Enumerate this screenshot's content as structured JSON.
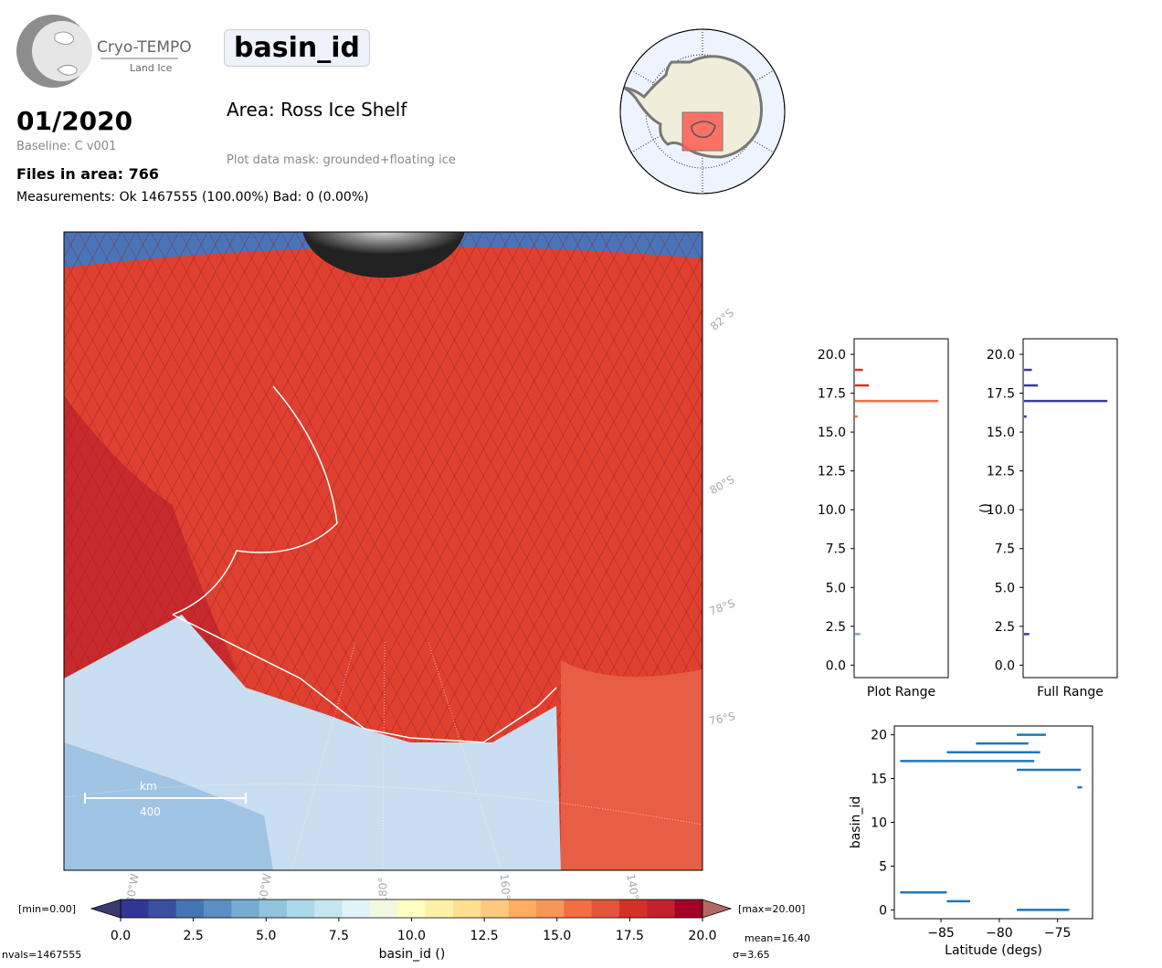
{
  "header": {
    "logo_name": "Cryo-TEMPO",
    "logo_sub": "Land Ice",
    "variable": "basin_id",
    "month": "01/2020",
    "baseline": "Baseline: C v001",
    "files": "Files in area: 766",
    "measurements": "Measurements: Ok 1467555 (100.00%) Bad: 0 (0.00%)",
    "area": "Area: Ross Ice Shelf",
    "mask": "Plot data mask: grounded+floating ice"
  },
  "map": {
    "lat_labels": [
      "82°S",
      "80°S",
      "78°S",
      "76°S"
    ],
    "lon_labels": [
      "180°W",
      "160°W",
      "180°",
      "160°E",
      "140°E"
    ],
    "scale_unit": "km",
    "scale_value": "400"
  },
  "colorbar": {
    "min_label": "[min=0.00]",
    "max_label": "[max=20.00]",
    "ticks": [
      "0.0",
      "2.5",
      "5.0",
      "7.5",
      "10.0",
      "12.5",
      "15.0",
      "17.5",
      "20.0"
    ],
    "label": "basin_id ()",
    "colors": [
      "#313695",
      "#3a4fa0",
      "#4575b4",
      "#5b8fc3",
      "#74add1",
      "#91c3dc",
      "#abd9e9",
      "#c6e6ef",
      "#e0f3f8",
      "#f0f8df",
      "#ffffbf",
      "#fff0a8",
      "#fee090",
      "#fdc980",
      "#fdae61",
      "#f89558",
      "#f46d43",
      "#e45539",
      "#d73027",
      "#c41f2c",
      "#a50026"
    ],
    "nvals": "nvals=1467555",
    "mean": "mean=16.40",
    "sigma": "σ=3.65"
  },
  "chart_data": [
    {
      "type": "bar",
      "orientation": "horizontal",
      "xlabel": "Plot Range",
      "ylabel": "",
      "ylim": [
        -0.8,
        21
      ],
      "yticks": [
        0.0,
        2.5,
        5.0,
        7.5,
        10.0,
        12.5,
        15.0,
        17.5,
        20.0
      ],
      "bars": [
        {
          "y": 2.0,
          "length": 0.06,
          "color": "#74add1"
        },
        {
          "y": 16.0,
          "length": 0.03,
          "color": "#f46d43"
        },
        {
          "y": 17.0,
          "length": 0.96,
          "color": "#f46d43"
        },
        {
          "y": 18.0,
          "length": 0.16,
          "color": "#d73027"
        },
        {
          "y": 19.0,
          "length": 0.09,
          "color": "#d73027"
        }
      ]
    },
    {
      "type": "bar",
      "orientation": "horizontal",
      "xlabel": "Full Range",
      "ylabel": "()",
      "ylim": [
        -0.8,
        21
      ],
      "yticks": [
        0.0,
        2.5,
        5.0,
        7.5,
        10.0,
        12.5,
        15.0,
        17.5,
        20.0
      ],
      "bars": [
        {
          "y": 2.0,
          "length": 0.06,
          "color": "#3a3a9a"
        },
        {
          "y": 16.0,
          "length": 0.03,
          "color": "#3a3a9a"
        },
        {
          "y": 17.0,
          "length": 0.96,
          "color": "#3a3a9a"
        },
        {
          "y": 18.0,
          "length": 0.16,
          "color": "#3a3a9a"
        },
        {
          "y": 19.0,
          "length": 0.09,
          "color": "#3a3a9a"
        }
      ]
    },
    {
      "type": "scatter",
      "xlabel": "Latitude (degs)",
      "ylabel": "basin_id",
      "xlim": [
        -89,
        -72
      ],
      "ylim": [
        -1,
        21
      ],
      "xticks": [
        -85,
        -80,
        -75
      ],
      "yticks": [
        0,
        5,
        10,
        15,
        20
      ],
      "color": "#1f77b4",
      "segments": [
        {
          "x0": -88.5,
          "x1": -84.5,
          "y": 2
        },
        {
          "x0": -84.5,
          "x1": -82.5,
          "y": 1
        },
        {
          "x0": -88.5,
          "x1": -77.0,
          "y": 17
        },
        {
          "x0": -84.5,
          "x1": -76.5,
          "y": 18
        },
        {
          "x0": -82.0,
          "x1": -77.5,
          "y": 19
        },
        {
          "x0": -78.5,
          "x1": -76.0,
          "y": 20
        },
        {
          "x0": -78.5,
          "x1": -73.0,
          "y": 16
        },
        {
          "x0": -73.3,
          "x1": -72.9,
          "y": 14
        },
        {
          "x0": -78.5,
          "x1": -74.0,
          "y": 0
        }
      ]
    }
  ]
}
